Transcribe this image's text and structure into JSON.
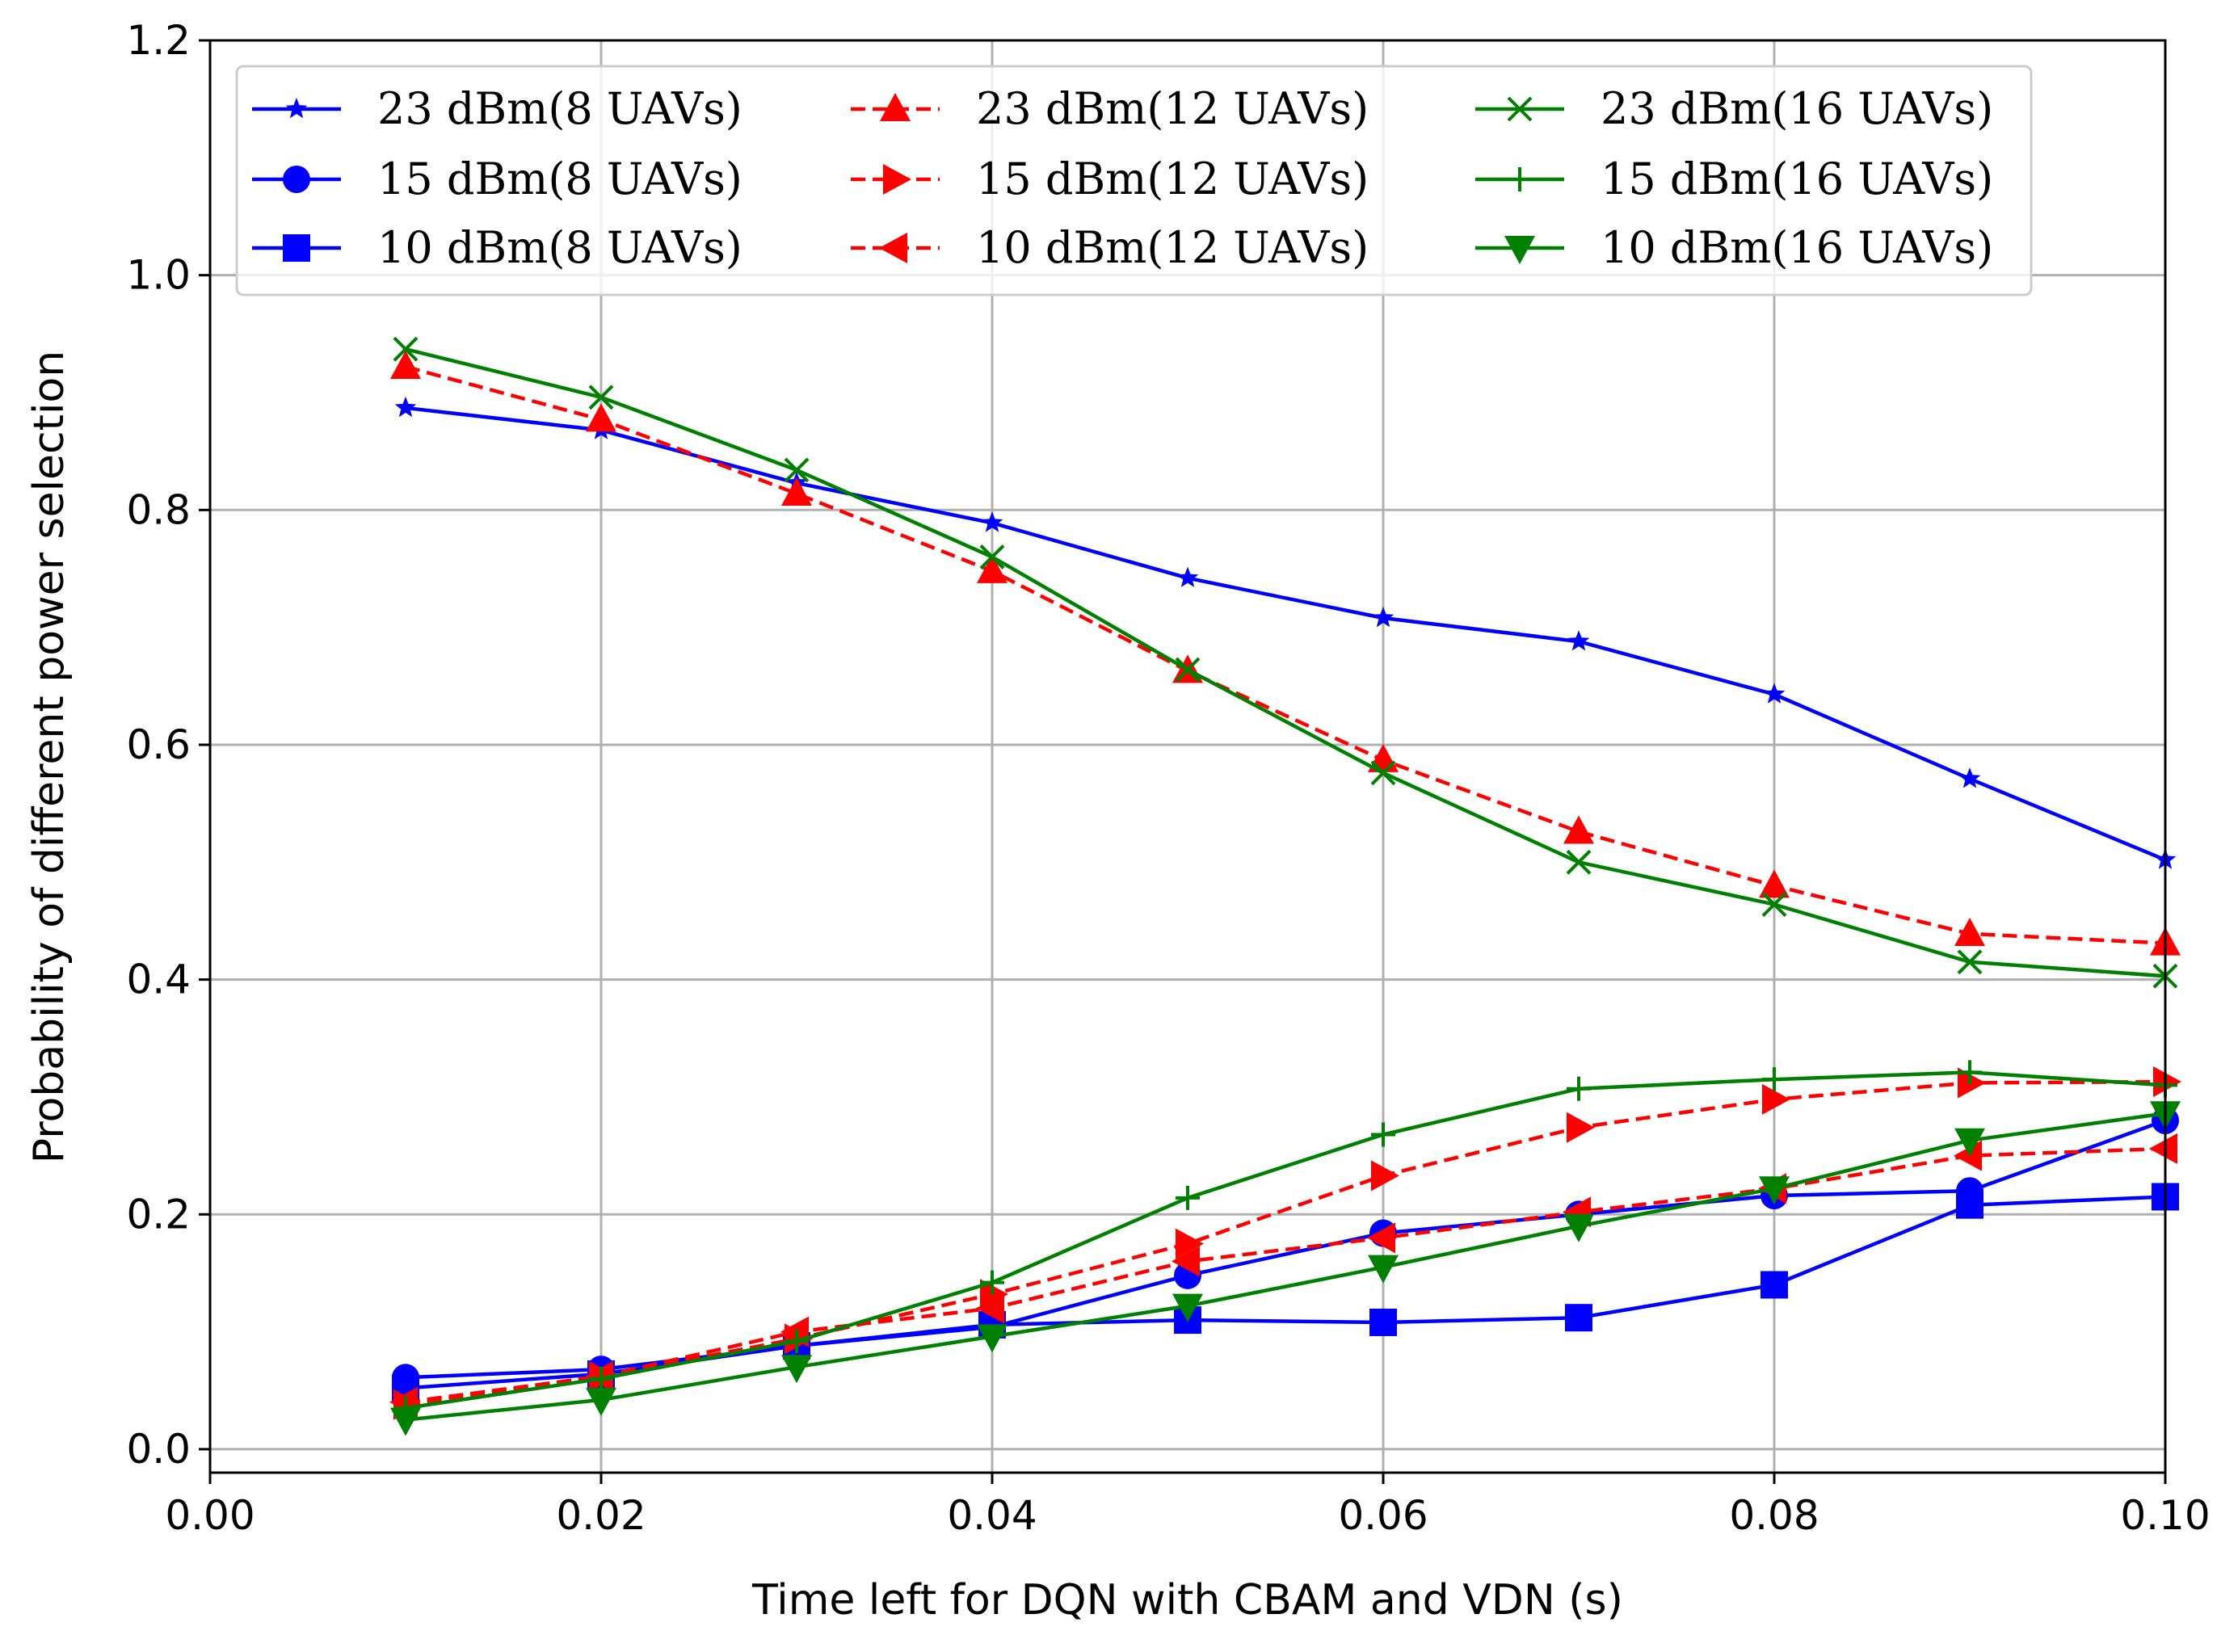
{
  "chart_data": {
    "type": "line",
    "title": "",
    "xlabel": "Time left for DQN with CBAM and VDN (s)",
    "ylabel": "Probability of different power selection",
    "xlim": [
      0.0,
      0.1
    ],
    "ylim": [
      -0.02,
      1.2
    ],
    "x_ticks": [
      0.0,
      0.02,
      0.04,
      0.06,
      0.08,
      0.1
    ],
    "x_tick_labels": [
      "0.00",
      "0.02",
      "0.04",
      "0.06",
      "0.08",
      "0.10"
    ],
    "y_ticks": [
      0.0,
      0.2,
      0.4,
      0.6,
      0.8,
      1.0,
      1.2
    ],
    "y_tick_labels": [
      "0.0",
      "0.2",
      "0.4",
      "0.6",
      "0.8",
      "1.0",
      "1.2"
    ],
    "grid": true,
    "legend_position": "top",
    "legend_columns": 3,
    "x": [
      0.01,
      0.02,
      0.03,
      0.04,
      0.05,
      0.06,
      0.07,
      0.08,
      0.09,
      0.1
    ],
    "series": [
      {
        "name": "23 dBm(8 UAVs)",
        "color": "#0000ff",
        "dash": "solid",
        "marker": "star",
        "values": [
          0.887,
          0.868,
          0.823,
          0.789,
          0.742,
          0.708,
          0.688,
          0.643,
          0.571,
          0.502
        ]
      },
      {
        "name": "15 dBm(8 UAVs)",
        "color": "#0000ff",
        "dash": "solid",
        "marker": "circle",
        "values": [
          0.061,
          0.068,
          0.088,
          0.104,
          0.148,
          0.184,
          0.2,
          0.216,
          0.22,
          0.28
        ]
      },
      {
        "name": "10 dBm(8 UAVs)",
        "color": "#0000ff",
        "dash": "solid",
        "marker": "square",
        "values": [
          0.052,
          0.064,
          0.088,
          0.106,
          0.11,
          0.108,
          0.112,
          0.14,
          0.208,
          0.215
        ]
      },
      {
        "name": "23 dBm(12 UAVs)",
        "color": "#ff0000",
        "dash": "dashed",
        "marker": "triangle-up",
        "values": [
          0.922,
          0.877,
          0.814,
          0.748,
          0.663,
          0.587,
          0.526,
          0.48,
          0.439,
          0.431
        ]
      },
      {
        "name": "15 dBm(12 UAVs)",
        "color": "#ff0000",
        "dash": "dashed",
        "marker": "triangle-right",
        "values": [
          0.038,
          0.062,
          0.094,
          0.132,
          0.175,
          0.233,
          0.274,
          0.298,
          0.312,
          0.313
        ]
      },
      {
        "name": "10 dBm(12 UAVs)",
        "color": "#ff0000",
        "dash": "dashed",
        "marker": "triangle-left",
        "values": [
          0.04,
          0.062,
          0.1,
          0.12,
          0.16,
          0.18,
          0.202,
          0.222,
          0.25,
          0.256
        ]
      },
      {
        "name": "23 dBm(16 UAVs)",
        "color": "#008000",
        "dash": "solid",
        "marker": "x",
        "values": [
          0.937,
          0.896,
          0.834,
          0.76,
          0.664,
          0.576,
          0.5,
          0.464,
          0.415,
          0.403
        ]
      },
      {
        "name": "15 dBm(16 UAVs)",
        "color": "#008000",
        "dash": "solid",
        "marker": "plus",
        "values": [
          0.035,
          0.06,
          0.092,
          0.142,
          0.214,
          0.268,
          0.307,
          0.315,
          0.321,
          0.31
        ]
      },
      {
        "name": "10 dBm(16 UAVs)",
        "color": "#008000",
        "dash": "solid",
        "marker": "triangle-down",
        "values": [
          0.025,
          0.042,
          0.07,
          0.096,
          0.122,
          0.155,
          0.19,
          0.222,
          0.263,
          0.286
        ]
      }
    ]
  }
}
